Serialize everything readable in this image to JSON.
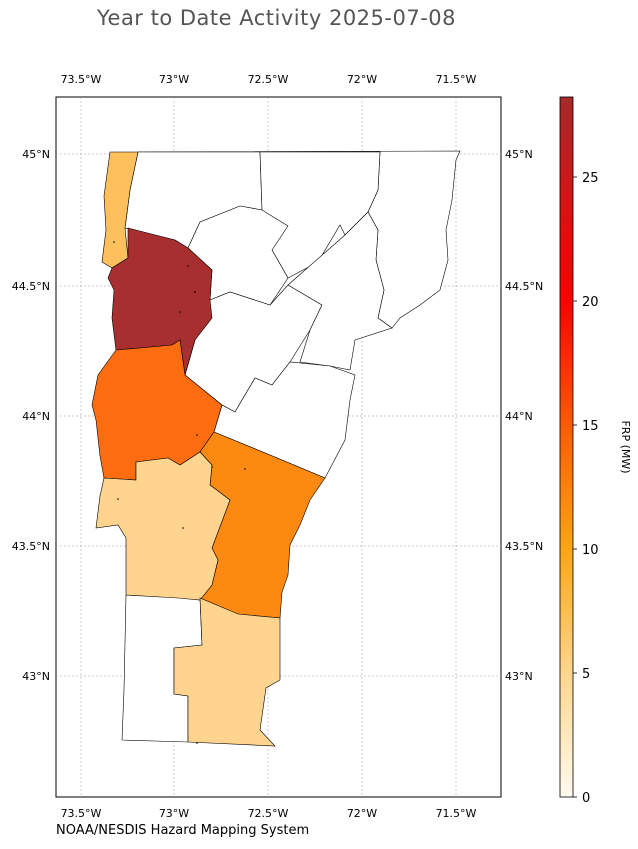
{
  "title": "Year to Date Activity 2025-07-08",
  "credit": "NOAA/NESDIS Hazard Mapping System",
  "map": {
    "lon_labels": [
      "73.5°W",
      "73°W",
      "72.5°W",
      "72°W",
      "71.5°W"
    ],
    "lat_labels": [
      "45°N",
      "44.5°N",
      "44°N",
      "43.5°N",
      "43°N"
    ],
    "lon_values": [
      -73.5,
      -73.0,
      -72.5,
      -72.0,
      -71.5
    ],
    "lat_values": [
      45.0,
      44.5,
      44.0,
      43.5,
      43.0
    ],
    "counties_colored": [
      {
        "region": "northwest island strip",
        "color": "#fec05c"
      },
      {
        "region": "northwest lakeshore",
        "color": "#a82f2f"
      },
      {
        "region": "west-central",
        "color": "#fc6c10"
      },
      {
        "region": "central",
        "color": "#fc8912"
      },
      {
        "region": "southwest",
        "color": "#fed48e"
      },
      {
        "region": "southeast",
        "color": "#fed48e"
      }
    ],
    "uncolored_color": "#ffffff"
  },
  "colorbar": {
    "label": "FRP (MW)",
    "ticks": [
      "0",
      "5",
      "10",
      "15",
      "20",
      "25"
    ],
    "tick_values": [
      0,
      5,
      10,
      15,
      20,
      25
    ],
    "max": 28.2,
    "colors": [
      "#fffaf0",
      "#fdd68a",
      "#fba313",
      "#f85c06",
      "#ff0000",
      "#a52a2a"
    ]
  }
}
